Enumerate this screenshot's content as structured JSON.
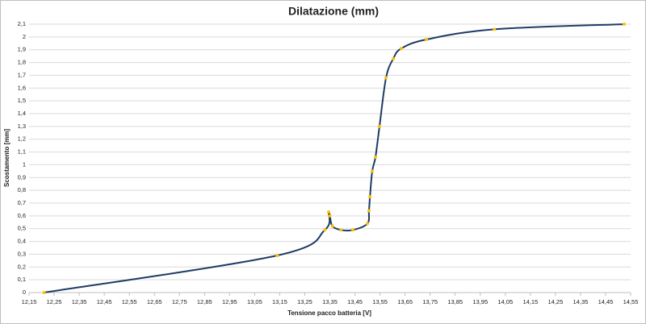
{
  "chart_data": {
    "type": "scatter-smooth",
    "title": "Dilatazione (mm)",
    "x_label": "Tensione pacco batteria [V]",
    "y_label": "Scostamento [mm]",
    "x": [
      12.21,
      13.14,
      13.33,
      13.345,
      13.35,
      13.36,
      13.394,
      13.442,
      13.5,
      13.506,
      13.51,
      13.519,
      13.532,
      13.548,
      13.574,
      13.603,
      13.635,
      13.735,
      14.006,
      14.524
    ],
    "values": [
      0,
      0.29,
      0.49,
      0.63,
      0.6,
      0.52,
      0.49,
      0.49,
      0.54,
      0.64,
      0.75,
      0.95,
      1.06,
      1.3,
      1.68,
      1.83,
      1.91,
      1.98,
      2.06,
      2.1
    ],
    "line_color": "#1f3b66",
    "marker_color": "#ffc000",
    "grid": true,
    "xlim": [
      12.15,
      14.55
    ],
    "ylim": [
      0,
      2.1
    ],
    "xticks": [
      {
        "value": 12.15,
        "label": "12,15"
      },
      {
        "value": 12.25,
        "label": "12,25"
      },
      {
        "value": 12.35,
        "label": "12,35"
      },
      {
        "value": 12.45,
        "label": "12,45"
      },
      {
        "value": 12.55,
        "label": "12,55"
      },
      {
        "value": 12.65,
        "label": "12,65"
      },
      {
        "value": 12.75,
        "label": "12,75"
      },
      {
        "value": 12.85,
        "label": "12,85"
      },
      {
        "value": 12.95,
        "label": "12,95"
      },
      {
        "value": 13.05,
        "label": "13,05"
      },
      {
        "value": 13.15,
        "label": "13,15"
      },
      {
        "value": 13.25,
        "label": "13,25"
      },
      {
        "value": 13.35,
        "label": "13,35"
      },
      {
        "value": 13.45,
        "label": "13,45"
      },
      {
        "value": 13.55,
        "label": "13,55"
      },
      {
        "value": 13.65,
        "label": "13,65"
      },
      {
        "value": 13.75,
        "label": "13,75"
      },
      {
        "value": 13.85,
        "label": "13,85"
      },
      {
        "value": 13.95,
        "label": "13,95"
      },
      {
        "value": 14.05,
        "label": "14,05"
      },
      {
        "value": 14.15,
        "label": "14,15"
      },
      {
        "value": 14.25,
        "label": "14,25"
      },
      {
        "value": 14.35,
        "label": "14,35"
      },
      {
        "value": 14.45,
        "label": "14,45"
      },
      {
        "value": 14.55,
        "label": "14,55"
      }
    ],
    "yticks": [
      0,
      {
        "value": 0.1,
        "label": "0,1"
      },
      {
        "value": 0.2,
        "label": "0,2"
      },
      {
        "value": 0.3,
        "label": "0,3"
      },
      {
        "value": 0.4,
        "label": "0,4"
      },
      {
        "value": 0.5,
        "label": "0,5"
      },
      {
        "value": 0.6,
        "label": "0,6"
      },
      {
        "value": 0.7,
        "label": "0,7"
      },
      {
        "value": 0.8,
        "label": "0,8"
      },
      {
        "value": 0.9,
        "label": "0,9"
      },
      1,
      {
        "value": 1.1,
        "label": "1,1"
      },
      {
        "value": 1.2,
        "label": "1,2"
      },
      {
        "value": 1.3,
        "label": "1,3"
      },
      {
        "value": 1.4,
        "label": "1,4"
      },
      {
        "value": 1.5,
        "label": "1,5"
      },
      {
        "value": 1.6,
        "label": "1,6"
      },
      {
        "value": 1.7,
        "label": "1,7"
      },
      {
        "value": 1.8,
        "label": "1,8"
      },
      {
        "value": 1.9,
        "label": "1,9"
      },
      2,
      {
        "value": 2.1,
        "label": "2,1"
      }
    ]
  }
}
